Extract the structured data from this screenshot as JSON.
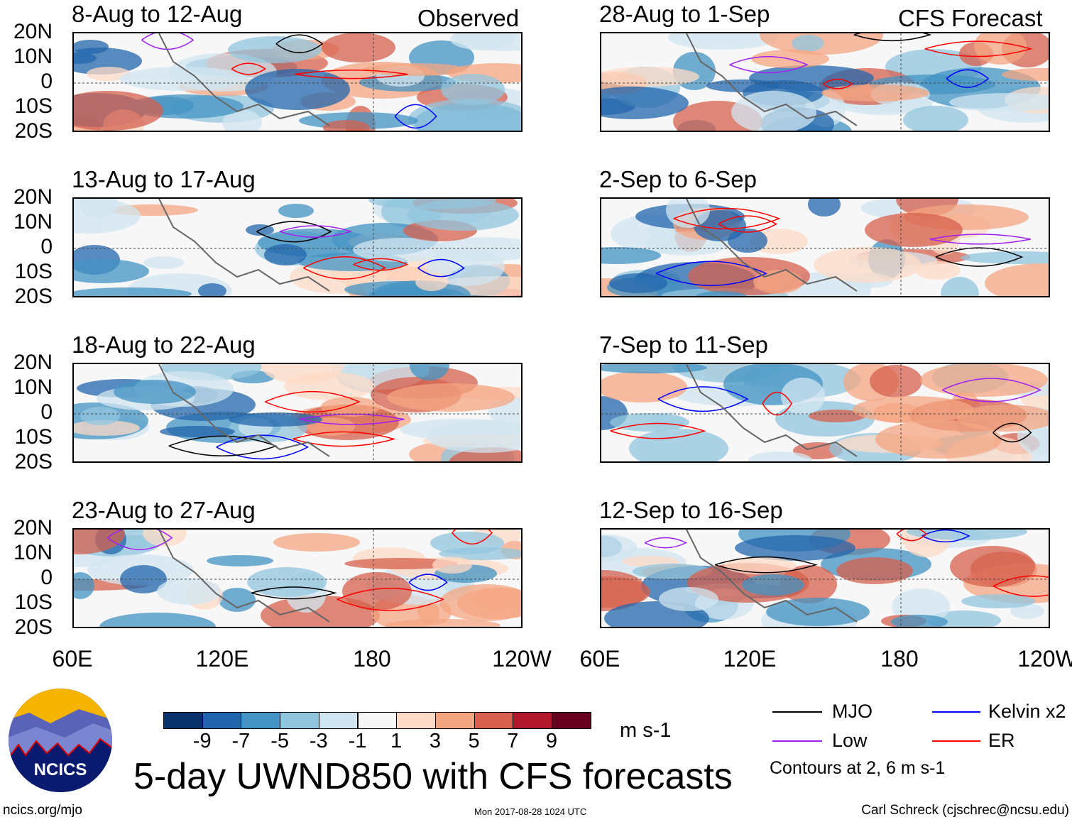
{
  "observed_label": "Observed",
  "forecast_label": "CFS Forecast",
  "panels": [
    {
      "title": "8-Aug to 12-Aug",
      "group": "observed"
    },
    {
      "title": "13-Aug to 17-Aug",
      "group": "observed"
    },
    {
      "title": "18-Aug to 22-Aug",
      "group": "observed"
    },
    {
      "title": "23-Aug to 27-Aug",
      "group": "observed"
    },
    {
      "title": "28-Aug to 1-Sep",
      "group": "forecast"
    },
    {
      "title": "2-Sep to 6-Sep",
      "group": "forecast"
    },
    {
      "title": "7-Sep to 11-Sep",
      "group": "forecast"
    },
    {
      "title": "12-Sep to 16-Sep",
      "group": "forecast"
    }
  ],
  "lat_labels": [
    "20N",
    "10N",
    "0",
    "10S",
    "20S"
  ],
  "lon_labels": [
    "60E",
    "120E",
    "180",
    "120W"
  ],
  "colorbar": {
    "colors": [
      "#08306b",
      "#2166ac",
      "#4393c3",
      "#92c5de",
      "#d1e5f0",
      "#f7f7f7",
      "#fddbc7",
      "#f4a582",
      "#d6604d",
      "#b2182b",
      "#67001f"
    ],
    "labels": [
      "-9",
      "-7",
      "-5",
      "-3",
      "-1",
      "1",
      "3",
      "5",
      "7",
      "9"
    ],
    "units": "m s-1"
  },
  "legend": {
    "items": [
      {
        "label": "MJO",
        "color": "#000000"
      },
      {
        "label": "Kelvin x2",
        "color": "#0000ff"
      },
      {
        "label": "Low",
        "color": "#a020f0"
      },
      {
        "label": "ER",
        "color": "#ff0000"
      }
    ],
    "note": "Contours at 2, 6 m s-1"
  },
  "main_title": "5-day UWND850 with CFS forecasts",
  "logo_text": "NCICS",
  "footer": {
    "left": "ncics.org/mjo",
    "center": "Mon 2017-08-28 1024 UTC",
    "right": "Carl Schreck (cjschrec@ncsu.edu)"
  }
}
